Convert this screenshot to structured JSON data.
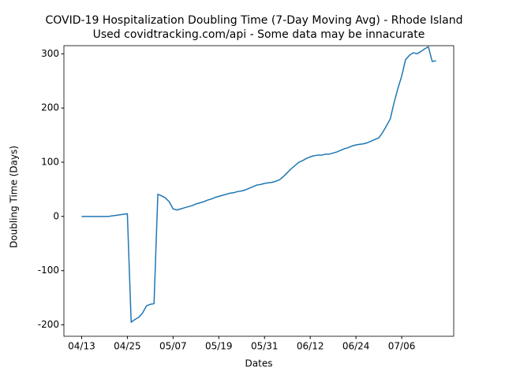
{
  "chart_data": {
    "type": "line",
    "title": "COVID-19 Hospitalization Doubling Time (7-Day Moving Avg) - Rhode Island",
    "subtitle": "Used covidtracking.com/api - Some data may be innacurate",
    "x_label": "Dates",
    "y_label": "Doubling Time (Days)",
    "x": [
      "04/13",
      "04/14",
      "04/15",
      "04/16",
      "04/17",
      "04/18",
      "04/19",
      "04/20",
      "04/21",
      "04/22",
      "04/23",
      "04/24",
      "04/25",
      "04/26",
      "04/27",
      "04/28",
      "04/29",
      "04/30",
      "05/01",
      "05/02",
      "05/03",
      "05/04",
      "05/05",
      "05/06",
      "05/07",
      "05/08",
      "05/09",
      "05/10",
      "05/11",
      "05/12",
      "05/13",
      "05/14",
      "05/15",
      "05/16",
      "05/17",
      "05/18",
      "05/19",
      "05/20",
      "05/21",
      "05/22",
      "05/23",
      "05/24",
      "05/25",
      "05/26",
      "05/27",
      "05/28",
      "05/29",
      "05/30",
      "05/31",
      "06/01",
      "06/02",
      "06/03",
      "06/04",
      "06/05",
      "06/06",
      "06/07",
      "06/08",
      "06/09",
      "06/10",
      "06/11",
      "06/12",
      "06/13",
      "06/14",
      "06/15",
      "06/16",
      "06/17",
      "06/18",
      "06/19",
      "06/20",
      "06/21",
      "06/22",
      "06/23",
      "06/24",
      "06/25",
      "06/26",
      "06/27",
      "06/28",
      "06/29",
      "06/30",
      "07/01",
      "07/02",
      "07/03",
      "07/04",
      "07/05",
      "07/06",
      "07/07",
      "07/08",
      "07/09",
      "07/10",
      "07/11",
      "07/12",
      "07/13",
      "07/14",
      "07/15"
    ],
    "series": [
      {
        "name": "Doubling Time",
        "color": "#1f77b4",
        "values": [
          0,
          0,
          0,
          0,
          0,
          0,
          0,
          0,
          1,
          2,
          3,
          4,
          5,
          -195,
          -190,
          -186,
          -178,
          -165,
          -162,
          -161,
          41,
          38,
          34,
          27,
          14,
          12,
          14,
          16,
          18,
          20,
          23,
          25,
          27,
          30,
          32,
          35,
          37,
          39,
          41,
          43,
          44,
          46,
          47,
          49,
          52,
          55,
          58,
          59,
          61,
          62,
          63,
          65,
          68,
          74,
          81,
          88,
          94,
          100,
          103,
          107,
          110,
          112,
          113,
          113,
          115,
          115,
          117,
          119,
          122,
          125,
          127,
          130,
          132,
          133,
          134,
          136,
          139,
          142,
          145,
          155,
          167,
          180,
          210,
          236,
          259,
          289,
          297,
          302,
          300,
          304,
          309,
          313,
          286,
          287
        ]
      }
    ],
    "xticks": [
      "04/13",
      "04/25",
      "05/07",
      "05/19",
      "05/31",
      "06/12",
      "06/24",
      "07/06"
    ],
    "ylim": [
      -221,
      315
    ],
    "yticks": [
      -200,
      -100,
      0,
      100,
      200,
      300
    ]
  }
}
